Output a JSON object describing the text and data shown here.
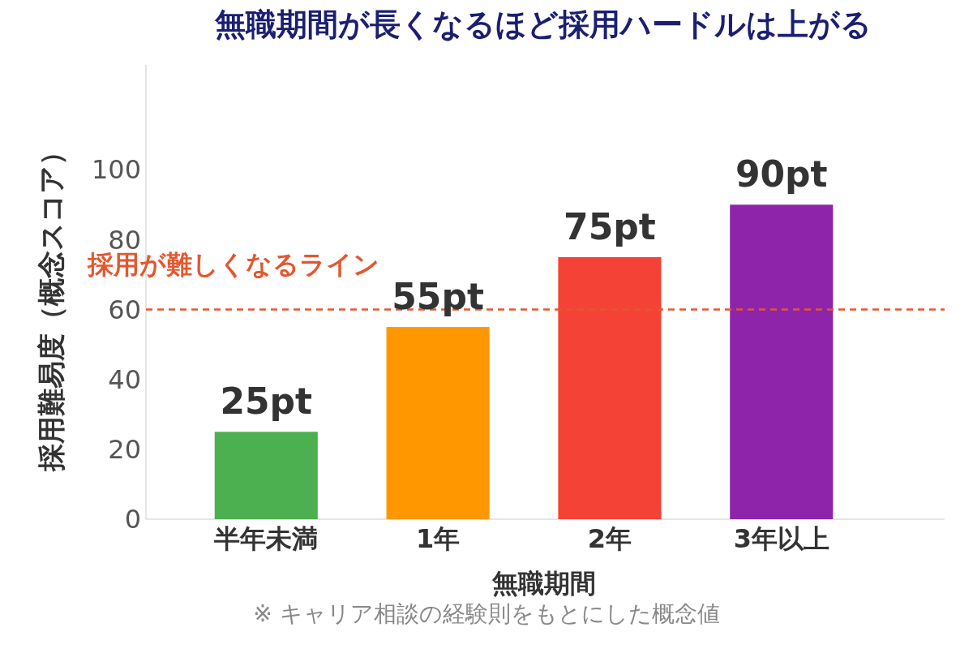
{
  "chart_data": {
    "type": "bar",
    "title": "無職期間が長くなるほど採用ハードルは上がる",
    "xlabel": "無職期間",
    "ylabel": "採用難易度（概念スコア）",
    "categories": [
      "半年未満",
      "1年",
      "2年",
      "3年以上"
    ],
    "values": [
      25,
      55,
      75,
      90
    ],
    "colors": [
      "#4caf50",
      "#ff9800",
      "#f44336",
      "#8e24aa"
    ],
    "value_labels": [
      "25pt",
      "55pt",
      "75pt",
      "90pt"
    ],
    "ylim": [
      0,
      130
    ],
    "yticks": [
      0,
      20,
      40,
      60,
      80,
      100
    ],
    "grid": false,
    "ref_lines": [
      {
        "axis": "y",
        "value": 60,
        "label": "採用が難しくなるライン",
        "color": "#e4572e",
        "line_style": "dashed"
      }
    ],
    "annotations": [
      "※ キャリア相談の経験則をもとにした概念値"
    ]
  }
}
